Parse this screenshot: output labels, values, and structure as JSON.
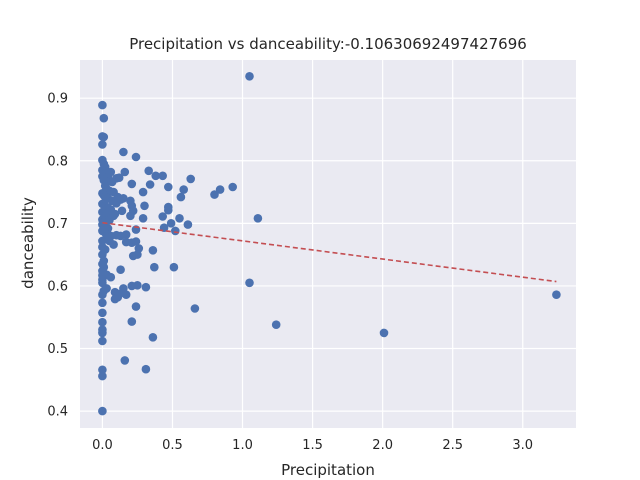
{
  "chart_data": {
    "type": "scatter",
    "title": "Precipitation vs danceability:-0.10630692497427696",
    "xlabel": "Precipitation",
    "ylabel": "danceability",
    "xlim": [
      -0.16,
      3.38
    ],
    "ylim": [
      0.373,
      0.961
    ],
    "x_ticks": [
      0.0,
      0.5,
      1.0,
      1.5,
      2.0,
      2.5,
      3.0
    ],
    "x_tick_labels": [
      "0.0",
      "0.5",
      "1.0",
      "1.5",
      "2.0",
      "2.5",
      "3.0"
    ],
    "y_ticks": [
      0.4,
      0.5,
      0.6,
      0.7,
      0.8,
      0.9
    ],
    "y_tick_labels": [
      "0.4",
      "0.5",
      "0.6",
      "0.7",
      "0.8",
      "0.9"
    ],
    "grid": true,
    "colors": {
      "background": "#eaeaf2",
      "grid": "#ffffff",
      "points": "#4c72b0",
      "trend": "#c44e52"
    },
    "trendline": {
      "x": [
        0.0,
        3.24
      ],
      "y": [
        0.701,
        0.607
      ]
    },
    "points": [
      [
        1.05,
        0.935
      ],
      [
        0.0,
        0.889
      ],
      [
        0.01,
        0.868
      ],
      [
        0.0,
        0.839
      ],
      [
        0.01,
        0.838
      ],
      [
        0.0,
        0.826
      ],
      [
        0.15,
        0.814
      ],
      [
        0.24,
        0.806
      ],
      [
        0.0,
        0.801
      ],
      [
        0.01,
        0.795
      ],
      [
        0.02,
        0.79
      ],
      [
        0.0,
        0.785
      ],
      [
        0.03,
        0.782
      ],
      [
        0.06,
        0.782
      ],
      [
        0.16,
        0.782
      ],
      [
        0.33,
        0.784
      ],
      [
        0.38,
        0.776
      ],
      [
        0.43,
        0.776
      ],
      [
        0.0,
        0.775
      ],
      [
        0.04,
        0.774
      ],
      [
        0.1,
        0.772
      ],
      [
        0.12,
        0.773
      ],
      [
        0.63,
        0.771
      ],
      [
        0.01,
        0.769
      ],
      [
        0.05,
        0.767
      ],
      [
        0.07,
        0.766
      ],
      [
        0.21,
        0.763
      ],
      [
        0.34,
        0.762
      ],
      [
        0.47,
        0.758
      ],
      [
        0.58,
        0.754
      ],
      [
        0.84,
        0.754
      ],
      [
        0.93,
        0.758
      ],
      [
        0.8,
        0.746
      ],
      [
        0.56,
        0.742
      ],
      [
        0.29,
        0.75
      ],
      [
        0.02,
        0.76
      ],
      [
        0.03,
        0.755
      ],
      [
        0.05,
        0.752
      ],
      [
        0.08,
        0.75
      ],
      [
        0.0,
        0.748
      ],
      [
        0.01,
        0.745
      ],
      [
        0.02,
        0.742
      ],
      [
        0.04,
        0.74
      ],
      [
        0.11,
        0.742
      ],
      [
        0.13,
        0.738
      ],
      [
        0.15,
        0.74
      ],
      [
        0.2,
        0.736
      ],
      [
        0.07,
        0.736
      ],
      [
        0.1,
        0.732
      ],
      [
        0.21,
        0.728
      ],
      [
        0.3,
        0.728
      ],
      [
        0.47,
        0.726
      ],
      [
        0.0,
        0.731
      ],
      [
        0.02,
        0.728
      ],
      [
        0.04,
        0.725
      ],
      [
        0.06,
        0.722
      ],
      [
        0.0,
        0.718
      ],
      [
        0.03,
        0.716
      ],
      [
        0.09,
        0.715
      ],
      [
        0.14,
        0.72
      ],
      [
        0.22,
        0.72
      ],
      [
        0.2,
        0.712
      ],
      [
        0.43,
        0.711
      ],
      [
        0.47,
        0.721
      ],
      [
        0.55,
        0.708
      ],
      [
        1.11,
        0.708
      ],
      [
        0.29,
        0.708
      ],
      [
        0.0,
        0.706
      ],
      [
        0.01,
        0.702
      ],
      [
        0.05,
        0.705
      ],
      [
        0.08,
        0.712
      ],
      [
        0.0,
        0.698
      ],
      [
        0.02,
        0.695
      ],
      [
        0.04,
        0.692
      ],
      [
        0.24,
        0.69
      ],
      [
        0.44,
        0.693
      ],
      [
        0.52,
        0.688
      ],
      [
        0.61,
        0.698
      ],
      [
        0.49,
        0.7
      ],
      [
        0.0,
        0.688
      ],
      [
        0.02,
        0.685
      ],
      [
        0.04,
        0.682
      ],
      [
        0.06,
        0.68
      ],
      [
        0.1,
        0.681
      ],
      [
        0.13,
        0.68
      ],
      [
        0.17,
        0.682
      ],
      [
        0.03,
        0.678
      ],
      [
        0.0,
        0.672
      ],
      [
        0.05,
        0.672
      ],
      [
        0.08,
        0.666
      ],
      [
        0.17,
        0.67
      ],
      [
        0.21,
        0.669
      ],
      [
        0.24,
        0.671
      ],
      [
        0.26,
        0.66
      ],
      [
        0.36,
        0.657
      ],
      [
        0.0,
        0.662
      ],
      [
        0.02,
        0.658
      ],
      [
        0.22,
        0.648
      ],
      [
        0.25,
        0.65
      ],
      [
        0.0,
        0.65
      ],
      [
        0.01,
        0.64
      ],
      [
        0.0,
        0.635
      ],
      [
        0.01,
        0.63
      ],
      [
        0.37,
        0.63
      ],
      [
        0.51,
        0.63
      ],
      [
        0.0,
        0.624
      ],
      [
        0.13,
        0.626
      ],
      [
        0.0,
        0.617
      ],
      [
        0.03,
        0.618
      ],
      [
        0.06,
        0.614
      ],
      [
        0.0,
        0.61
      ],
      [
        0.15,
        0.596
      ],
      [
        0.21,
        0.6
      ],
      [
        0.25,
        0.601
      ],
      [
        0.31,
        0.598
      ],
      [
        0.0,
        0.605
      ],
      [
        0.01,
        0.592
      ],
      [
        0.03,
        0.596
      ],
      [
        0.09,
        0.59
      ],
      [
        0.12,
        0.587
      ],
      [
        0.17,
        0.586
      ],
      [
        0.09,
        0.579
      ],
      [
        0.11,
        0.582
      ],
      [
        1.05,
        0.605
      ],
      [
        0.0,
        0.586
      ],
      [
        0.0,
        0.573
      ],
      [
        0.24,
        0.567
      ],
      [
        0.66,
        0.564
      ],
      [
        0.0,
        0.557
      ],
      [
        0.21,
        0.543
      ],
      [
        1.24,
        0.538
      ],
      [
        0.0,
        0.542
      ],
      [
        0.0,
        0.53
      ],
      [
        0.0,
        0.525
      ],
      [
        2.01,
        0.525
      ],
      [
        0.36,
        0.518
      ],
      [
        0.0,
        0.512
      ],
      [
        0.16,
        0.481
      ],
      [
        0.0,
        0.466
      ],
      [
        0.31,
        0.467
      ],
      [
        0.0,
        0.456
      ],
      [
        0.0,
        0.4
      ],
      [
        3.24,
        0.586
      ]
    ]
  }
}
